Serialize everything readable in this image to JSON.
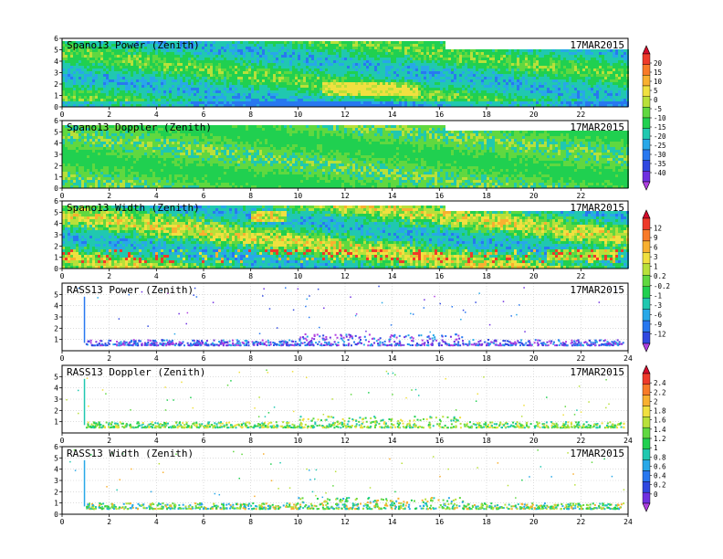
{
  "chart_data": [
    {
      "type": "heatmap",
      "title": "Spano13 Power (Zenith)",
      "date": "17MAR2015",
      "xlim": [
        0,
        24
      ],
      "ylim": [
        0,
        6
      ],
      "xticks": [
        0,
        2,
        4,
        6,
        8,
        10,
        12,
        14,
        16,
        18,
        20,
        22
      ],
      "yticks": [
        0,
        1,
        2,
        3,
        4,
        5,
        6
      ],
      "colorbar": "bar1"
    },
    {
      "type": "heatmap",
      "title": "Spano13 Doppler (Zenith)",
      "date": "17MAR2015",
      "xlim": [
        0,
        24
      ],
      "ylim": [
        0,
        6
      ],
      "xticks": [
        0,
        2,
        4,
        6,
        8,
        10,
        12,
        14,
        16,
        18,
        20,
        22
      ],
      "yticks": [
        0,
        1,
        2,
        3,
        4,
        5,
        6
      ],
      "colorbar": "bar1"
    },
    {
      "type": "heatmap",
      "title": "Spano13 Width (Zenith)",
      "date": "17MAR2015",
      "xlim": [
        0,
        24
      ],
      "ylim": [
        0,
        6
      ],
      "xticks": [
        0,
        2,
        4,
        6,
        8,
        10,
        12,
        14,
        16,
        18,
        20,
        22
      ],
      "yticks": [
        0,
        1,
        2,
        3,
        4,
        5,
        6
      ],
      "colorbar": "bar2"
    },
    {
      "type": "scatter",
      "title": "RASS13 Power (Zenith)",
      "date": "17MAR2015",
      "xlim": [
        0,
        24
      ],
      "ylim": [
        0,
        6
      ],
      "xticks": [
        0,
        2,
        4,
        6,
        8,
        10,
        12,
        14,
        16,
        18,
        20,
        22,
        24
      ],
      "yticks": [
        1,
        2,
        3,
        4,
        5
      ],
      "grid": true,
      "colorbar": "bar2"
    },
    {
      "type": "scatter",
      "title": "RASS13 Doppler (Zenith)",
      "date": "17MAR2015",
      "xlim": [
        0,
        24
      ],
      "ylim": [
        0,
        6
      ],
      "xticks": [
        0,
        2,
        4,
        6,
        8,
        10,
        12,
        14,
        16,
        18,
        20,
        22,
        24
      ],
      "yticks": [
        1,
        2,
        3,
        4,
        5
      ],
      "grid": true,
      "colorbar": "bar3"
    },
    {
      "type": "scatter",
      "title": "RASS13 Width (Zenith)",
      "date": "17MAR2015",
      "xlim": [
        0,
        24
      ],
      "ylim": [
        0,
        6
      ],
      "xticks": [
        0,
        2,
        4,
        6,
        8,
        10,
        12,
        14,
        16,
        18,
        20,
        22,
        24
      ],
      "yticks": [
        0,
        1,
        2,
        3,
        4,
        5,
        6
      ],
      "grid": true,
      "colorbar": "bar3"
    }
  ],
  "colorbars": {
    "bar1": {
      "labels": [
        "20",
        "15",
        "10",
        "5",
        "0",
        "-5",
        "-10",
        "-15",
        "-20",
        "-25",
        "-30",
        "-35",
        "-40"
      ],
      "colors": [
        "#d40a2a",
        "#ee3a2a",
        "#f87a28",
        "#f8b030",
        "#f0e040",
        "#b8e03a",
        "#60d840",
        "#20d050",
        "#20c8b0",
        "#28a8e8",
        "#2878f0",
        "#3048e0",
        "#7030e0",
        "#b040e0"
      ]
    },
    "bar2": {
      "labels": [
        "12",
        "9",
        "6",
        "3",
        "1",
        "0.2",
        "-0.2",
        "-1",
        "-3",
        "-6",
        "-9",
        "-12"
      ],
      "colors": [
        "#d40a2a",
        "#ee3a2a",
        "#f87a28",
        "#f8b030",
        "#f0e040",
        "#b8e03a",
        "#60d840",
        "#20d050",
        "#20c8b0",
        "#28a8e8",
        "#2878f0",
        "#3048e0",
        "#b040e0"
      ]
    },
    "bar3": {
      "labels": [
        "2.4",
        "2.2",
        "2",
        "1.8",
        "1.6",
        "1.4",
        "1.2",
        "1",
        "0.8",
        "0.6",
        "0.4",
        "0.2",
        "0"
      ],
      "colors": [
        "#d40a2a",
        "#ee3a2a",
        "#f87a28",
        "#f8b030",
        "#f0e040",
        "#b8e03a",
        "#60d840",
        "#20d050",
        "#20c8b0",
        "#28a8e8",
        "#2878f0",
        "#3048e0",
        "#7030e0",
        "#b040e0"
      ]
    }
  }
}
